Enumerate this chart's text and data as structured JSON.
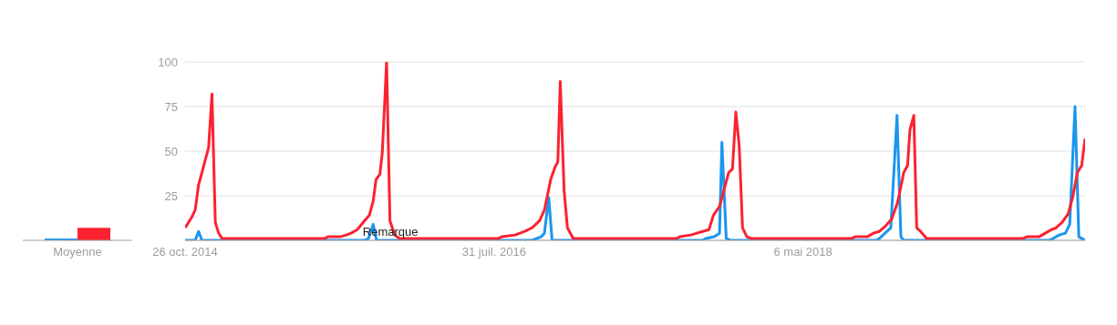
{
  "chart_data": [
    {
      "type": "bar",
      "categories": [
        "Moyenne"
      ],
      "ylim": [
        0,
        100
      ],
      "tick_labels": "x",
      "series": [
        {
          "color": "#1a96ef",
          "values": [
            1
          ]
        },
        {
          "color": "#fc2230",
          "values": [
            7
          ]
        }
      ]
    },
    {
      "type": "line",
      "xlim": [
        "2014-10-26",
        "2019-12-15"
      ],
      "ylim": [
        0,
        100
      ],
      "grid": "y",
      "xticks": [
        {
          "value": "2014-10-26",
          "label": "26 oct. 2014"
        },
        {
          "value": "2016-07-31",
          "label": "31 juil. 2016"
        },
        {
          "value": "2018-05-06",
          "label": "6 mai 2018"
        }
      ],
      "yticks": [
        25,
        50,
        75,
        100
      ],
      "annotations": [
        {
          "text": "Remarque",
          "x": "2015-12-28",
          "y": 5
        }
      ],
      "series": [
        {
          "color": "#1a96ef",
          "x": [
            "2014-10-26",
            "2014-11-16",
            "2014-11-23",
            "2014-11-30",
            "2015-11-04",
            "2015-11-12",
            "2015-11-22",
            "2015-11-29",
            "2016-10-18",
            "2016-11-06",
            "2016-11-13",
            "2016-11-22",
            "2016-11-29",
            "2017-10-09",
            "2017-10-15",
            "2017-11-02",
            "2017-11-13",
            "2017-11-18",
            "2017-11-27",
            "2017-12-06",
            "2018-10-06",
            "2018-10-12",
            "2018-10-28",
            "2018-11-05",
            "2018-11-18",
            "2018-11-26",
            "2018-12-02",
            "2019-10-01",
            "2019-10-09",
            "2019-10-22",
            "2019-11-04",
            "2019-11-13",
            "2019-11-24",
            "2019-12-02",
            "2019-12-15"
          ],
          "values": [
            0,
            0,
            5,
            0,
            0,
            1,
            9,
            0,
            0,
            2,
            4,
            24,
            0,
            0,
            1,
            2,
            4,
            55,
            1,
            0,
            0,
            1,
            5,
            7,
            70,
            2,
            0,
            0,
            1,
            3,
            4,
            9,
            75,
            2,
            0
          ]
        },
        {
          "color": "#fc2230",
          "x": [
            "2014-10-26",
            "2014-11-02",
            "2014-11-09",
            "2014-11-16",
            "2014-11-23",
            "2014-11-30",
            "2014-12-07",
            "2014-12-14",
            "2014-12-21",
            "2014-12-28",
            "2015-01-04",
            "2015-01-11",
            "2015-08-12",
            "2015-08-20",
            "2015-09-14",
            "2015-09-27",
            "2015-10-07",
            "2015-10-20",
            "2015-11-04",
            "2015-11-14",
            "2015-11-22",
            "2015-11-28",
            "2015-12-06",
            "2015-12-11",
            "2015-12-20",
            "2015-12-27",
            "2016-01-06",
            "2016-01-16",
            "2016-08-08",
            "2016-08-16",
            "2016-09-13",
            "2016-10-03",
            "2016-10-18",
            "2016-11-03",
            "2016-11-13",
            "2016-11-26",
            "2016-12-05",
            "2016-12-11",
            "2016-12-16",
            "2016-12-24",
            "2016-12-31",
            "2017-01-12",
            "2017-08-15",
            "2017-08-22",
            "2017-09-14",
            "2017-10-09",
            "2017-10-22",
            "2017-10-31",
            "2017-11-13",
            "2017-11-22",
            "2017-12-02",
            "2017-12-10",
            "2017-12-17",
            "2017-12-24",
            "2017-12-31",
            "2018-01-09",
            "2018-01-19",
            "2018-08-14",
            "2018-08-23",
            "2018-09-17",
            "2018-09-30",
            "2018-10-12",
            "2018-10-25",
            "2018-11-07",
            "2018-11-19",
            "2018-12-02",
            "2018-12-10",
            "2018-12-15",
            "2018-12-23",
            "2018-12-29",
            "2019-01-06",
            "2019-01-19",
            "2019-08-07",
            "2019-08-16",
            "2019-09-10",
            "2019-09-23",
            "2019-10-06",
            "2019-10-15",
            "2019-10-28",
            "2019-11-10",
            "2019-11-19",
            "2019-11-29",
            "2019-12-08",
            "2019-12-15"
          ],
          "values": [
            7,
            10,
            13,
            17,
            31,
            38,
            45,
            52,
            82,
            10,
            4,
            1,
            1,
            2,
            2,
            3,
            4,
            6,
            11,
            14,
            22,
            34,
            37,
            49,
            100,
            11,
            3,
            1,
            1,
            2,
            3,
            5,
            7,
            11,
            17,
            34,
            41,
            44,
            89,
            28,
            7,
            1,
            1,
            2,
            3,
            5,
            6,
            14,
            19,
            28,
            38,
            40,
            72,
            53,
            7,
            2,
            1,
            1,
            2,
            2,
            4,
            5,
            8,
            12,
            21,
            38,
            42,
            62,
            70,
            7,
            5,
            1,
            1,
            2,
            2,
            4,
            6,
            7,
            10,
            15,
            24,
            38,
            42,
            57
          ]
        }
      ]
    }
  ]
}
